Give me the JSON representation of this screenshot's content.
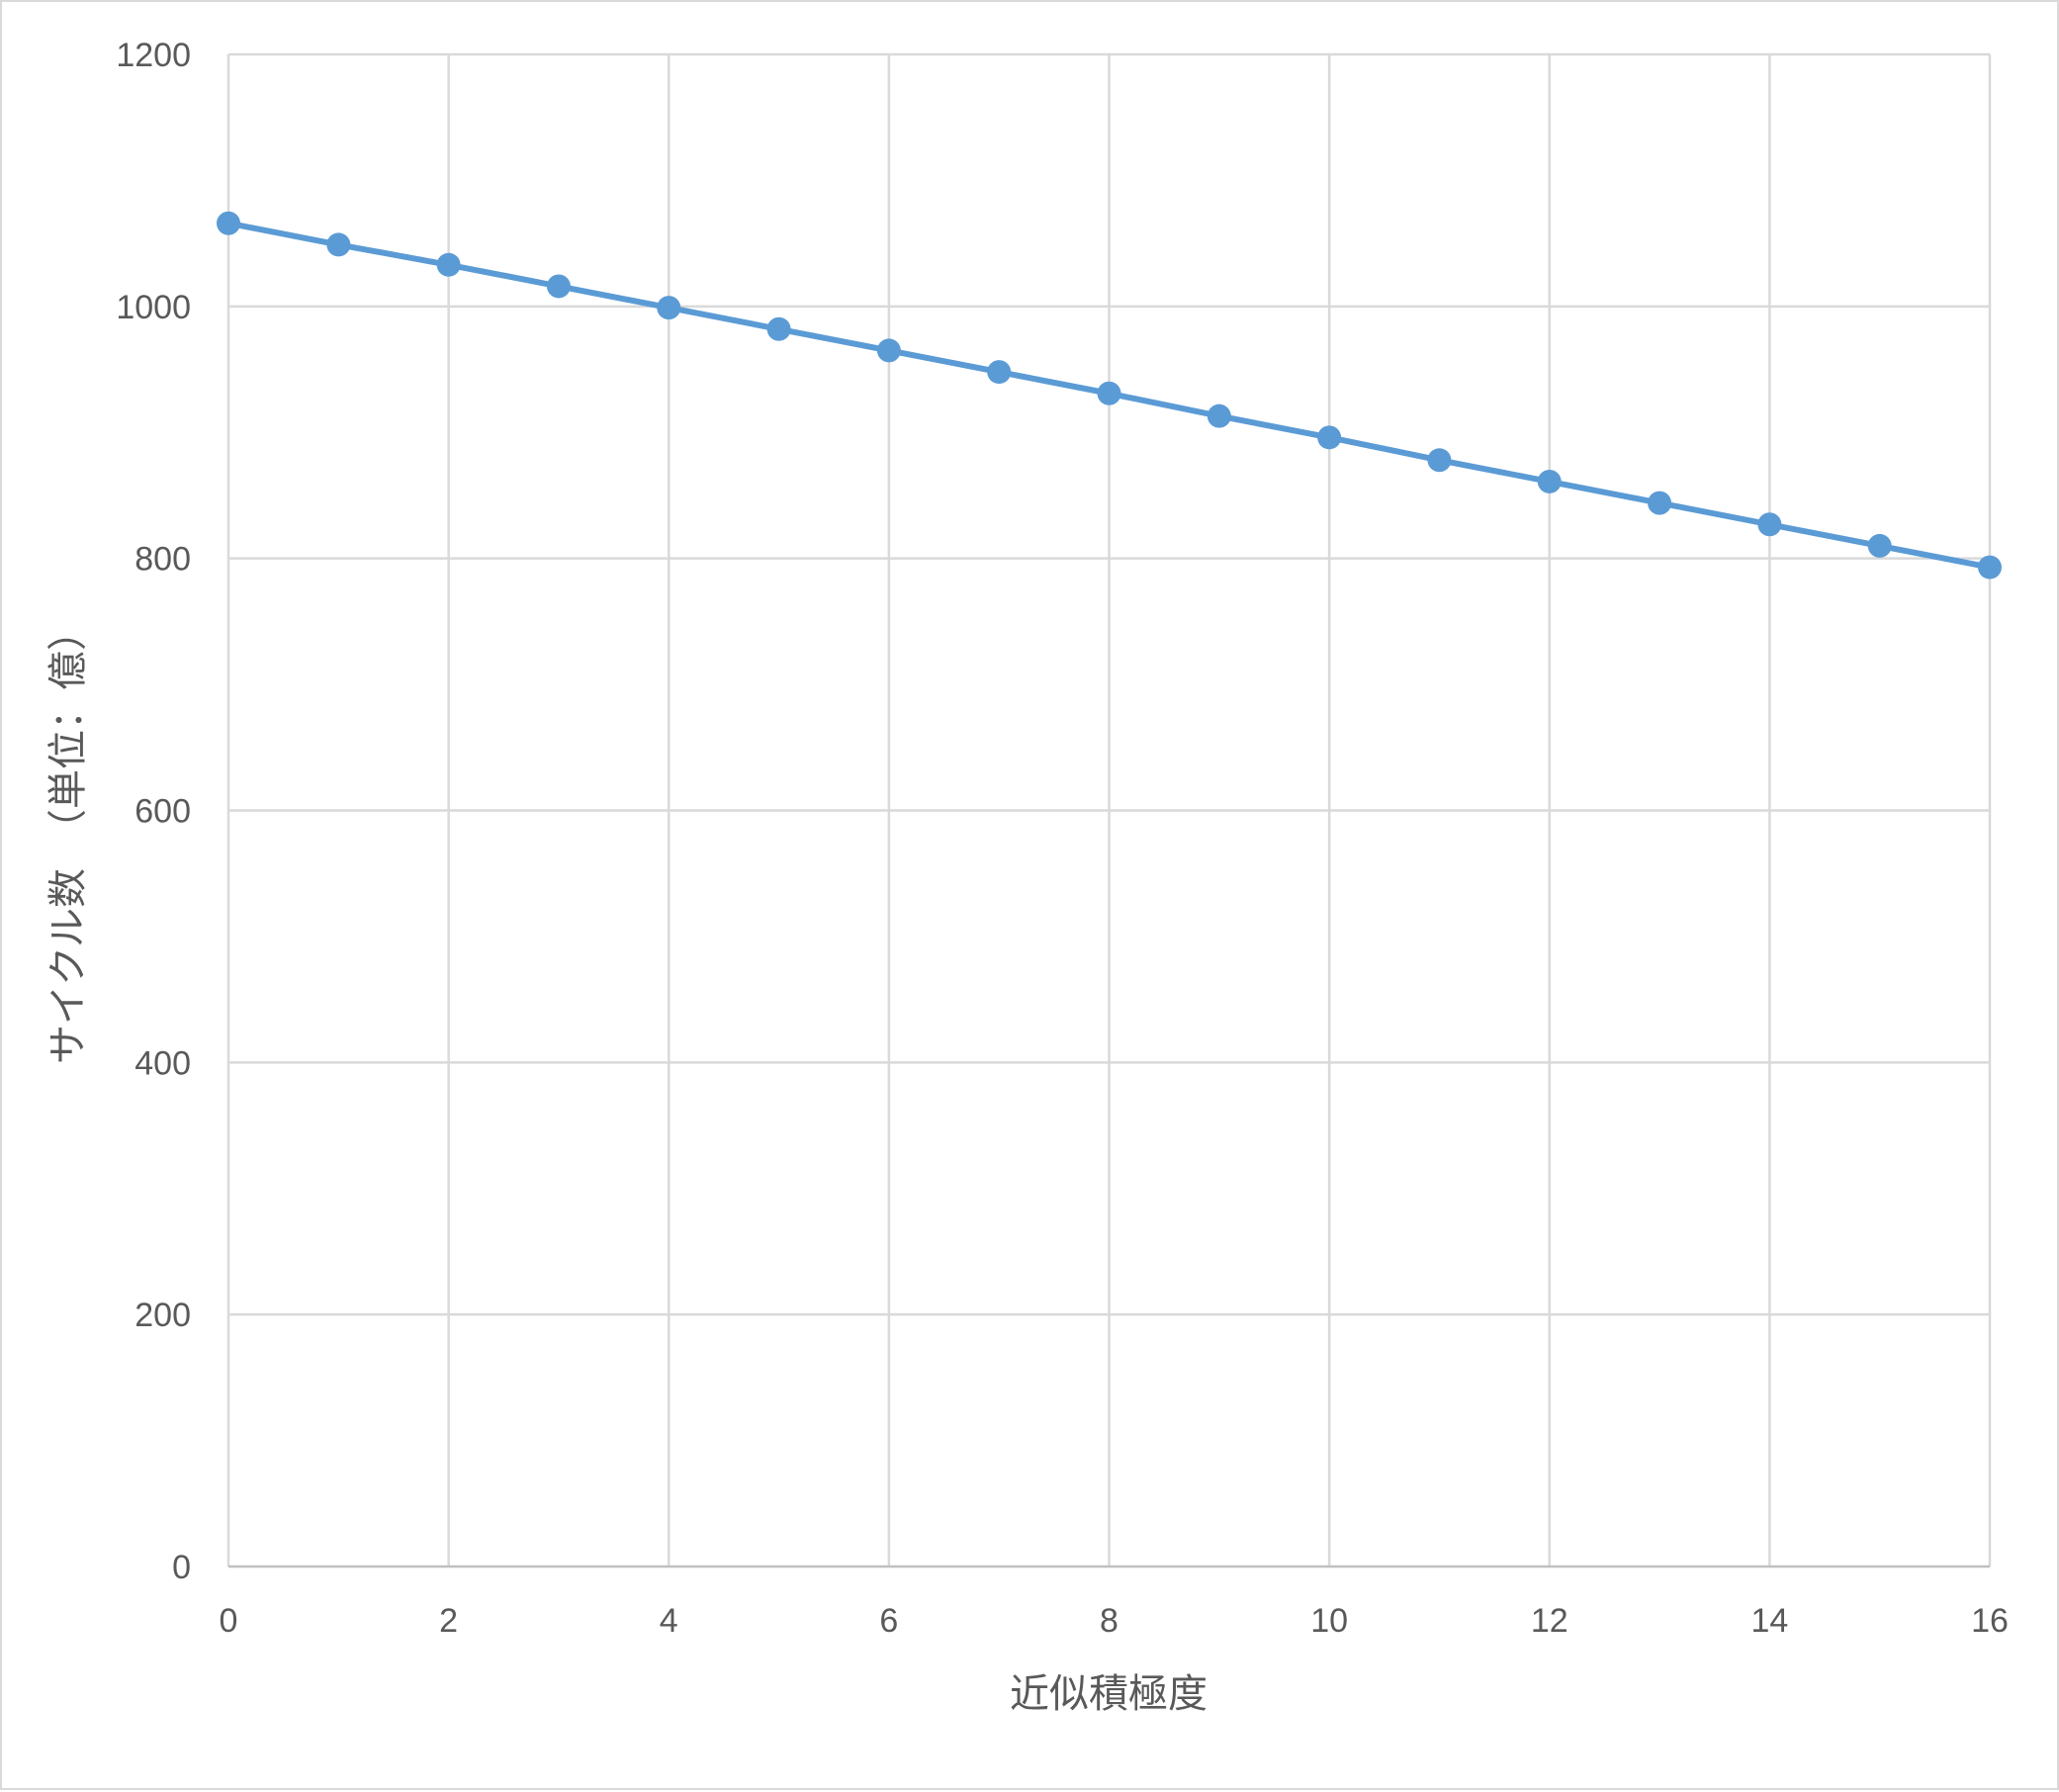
{
  "chart_data": {
    "type": "line",
    "title": "",
    "xlabel": "近似積極度",
    "ylabel": "サイクル数　（単位：億）",
    "xlim": [
      0,
      16
    ],
    "ylim": [
      0,
      1200
    ],
    "x_ticks": [
      "0",
      "2",
      "4",
      "6",
      "8",
      "10",
      "12",
      "14",
      "16"
    ],
    "y_ticks": [
      "0",
      "200",
      "400",
      "600",
      "800",
      "1000",
      "1200"
    ],
    "grid": true,
    "legend": "none",
    "series": [
      {
        "color": "#5b9bd5",
        "marker": "circle",
        "x": [
          0,
          1,
          2,
          3,
          4,
          5,
          6,
          7,
          8,
          9,
          10,
          11,
          12,
          13,
          14,
          15,
          16
        ],
        "y": [
          1066,
          1049,
          1033,
          1016,
          999,
          982,
          965,
          948,
          931,
          913,
          896,
          878,
          861,
          844,
          827,
          810,
          793
        ]
      }
    ]
  }
}
